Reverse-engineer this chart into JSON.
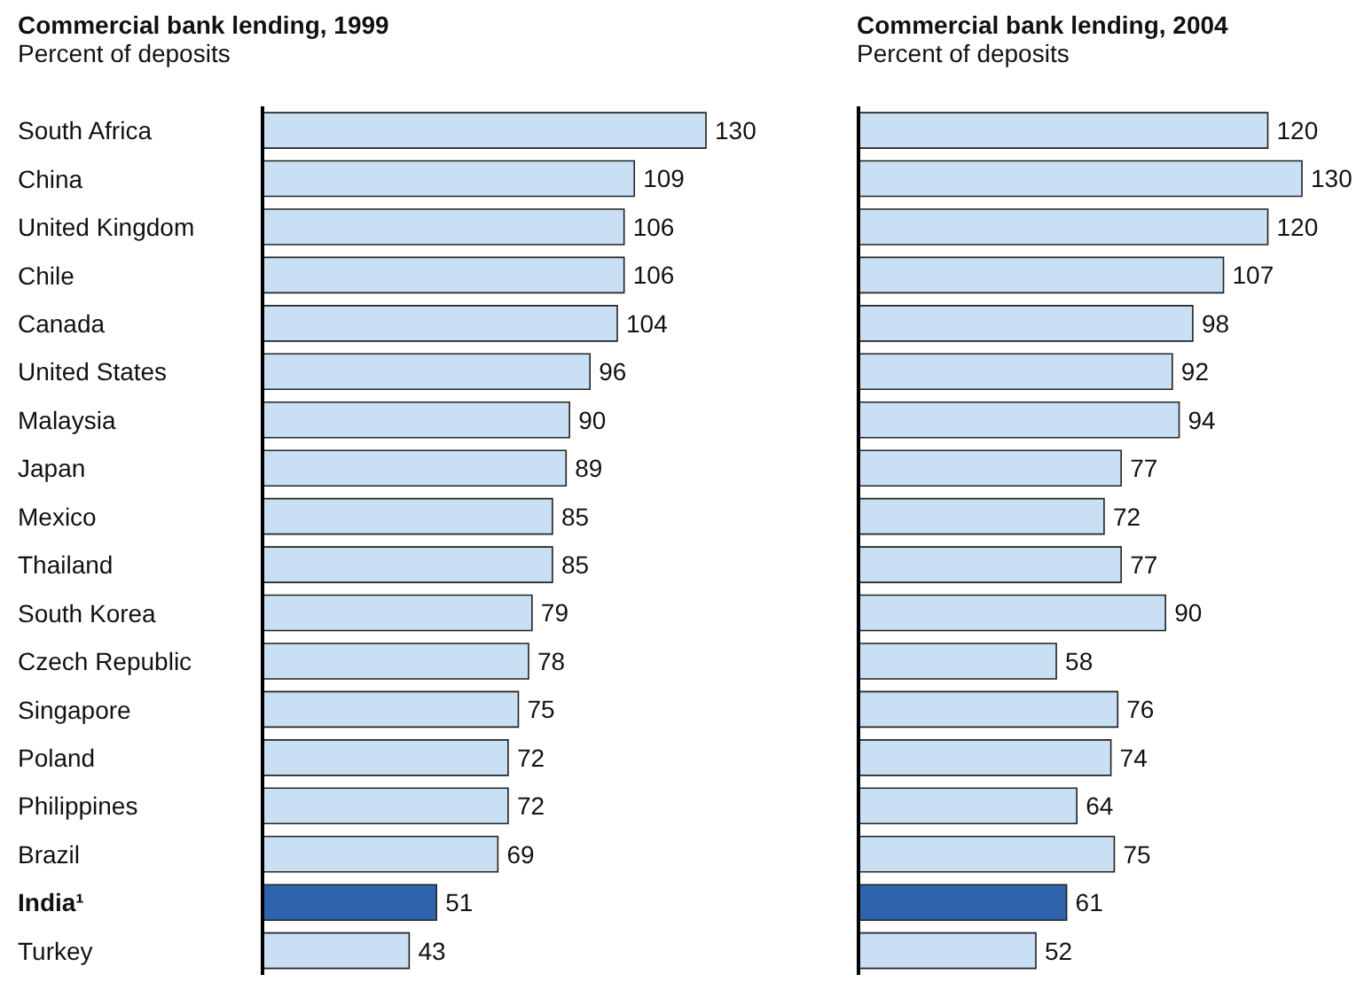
{
  "chart_data": [
    {
      "type": "bar",
      "orientation": "horizontal",
      "title": "Commercial bank lending, 1999",
      "subtitle": "Percent of deposits",
      "categories": [
        "South Africa",
        "China",
        "United Kingdom",
        "Chile",
        "Canada",
        "United States",
        "Malaysia",
        "Japan",
        "Mexico",
        "Thailand",
        "South Korea",
        "Czech Republic",
        "Singapore",
        "Poland",
        "Philippines",
        "Brazil",
        "India¹",
        "Turkey"
      ],
      "values": [
        130,
        109,
        106,
        106,
        104,
        96,
        90,
        89,
        85,
        85,
        79,
        78,
        75,
        72,
        72,
        69,
        51,
        43
      ],
      "colors": [
        "#c9dff3",
        "#c9dff3",
        "#c9dff3",
        "#c9dff3",
        "#c9dff3",
        "#c9dff3",
        "#c9dff3",
        "#c9dff3",
        "#c9dff3",
        "#c9dff3",
        "#c9dff3",
        "#c9dff3",
        "#c9dff3",
        "#c9dff3",
        "#c9dff3",
        "#c9dff3",
        "#2e64ae",
        "#c9dff3"
      ],
      "data_labels": true
    },
    {
      "type": "bar",
      "orientation": "horizontal",
      "title": "Commercial bank lending, 2004",
      "subtitle": "Percent of deposits",
      "categories": [
        null,
        null,
        null,
        null,
        null,
        null,
        null,
        null,
        null,
        null,
        null,
        null,
        null,
        null,
        null,
        null,
        null,
        null
      ],
      "values": [
        120,
        130,
        120,
        107,
        98,
        92,
        94,
        77,
        72,
        77,
        90,
        58,
        76,
        74,
        64,
        75,
        61,
        52
      ],
      "colors": [
        "#c9dff3",
        "#c9dff3",
        "#c9dff3",
        "#c9dff3",
        "#c9dff3",
        "#c9dff3",
        "#c9dff3",
        "#c9dff3",
        "#c9dff3",
        "#c9dff3",
        "#c9dff3",
        "#c9dff3",
        "#c9dff3",
        "#c9dff3",
        "#c9dff3",
        "#c9dff3",
        "#2e64ae",
        "#c9dff3"
      ],
      "data_labels": true,
      "tick_labels": false
    }
  ]
}
